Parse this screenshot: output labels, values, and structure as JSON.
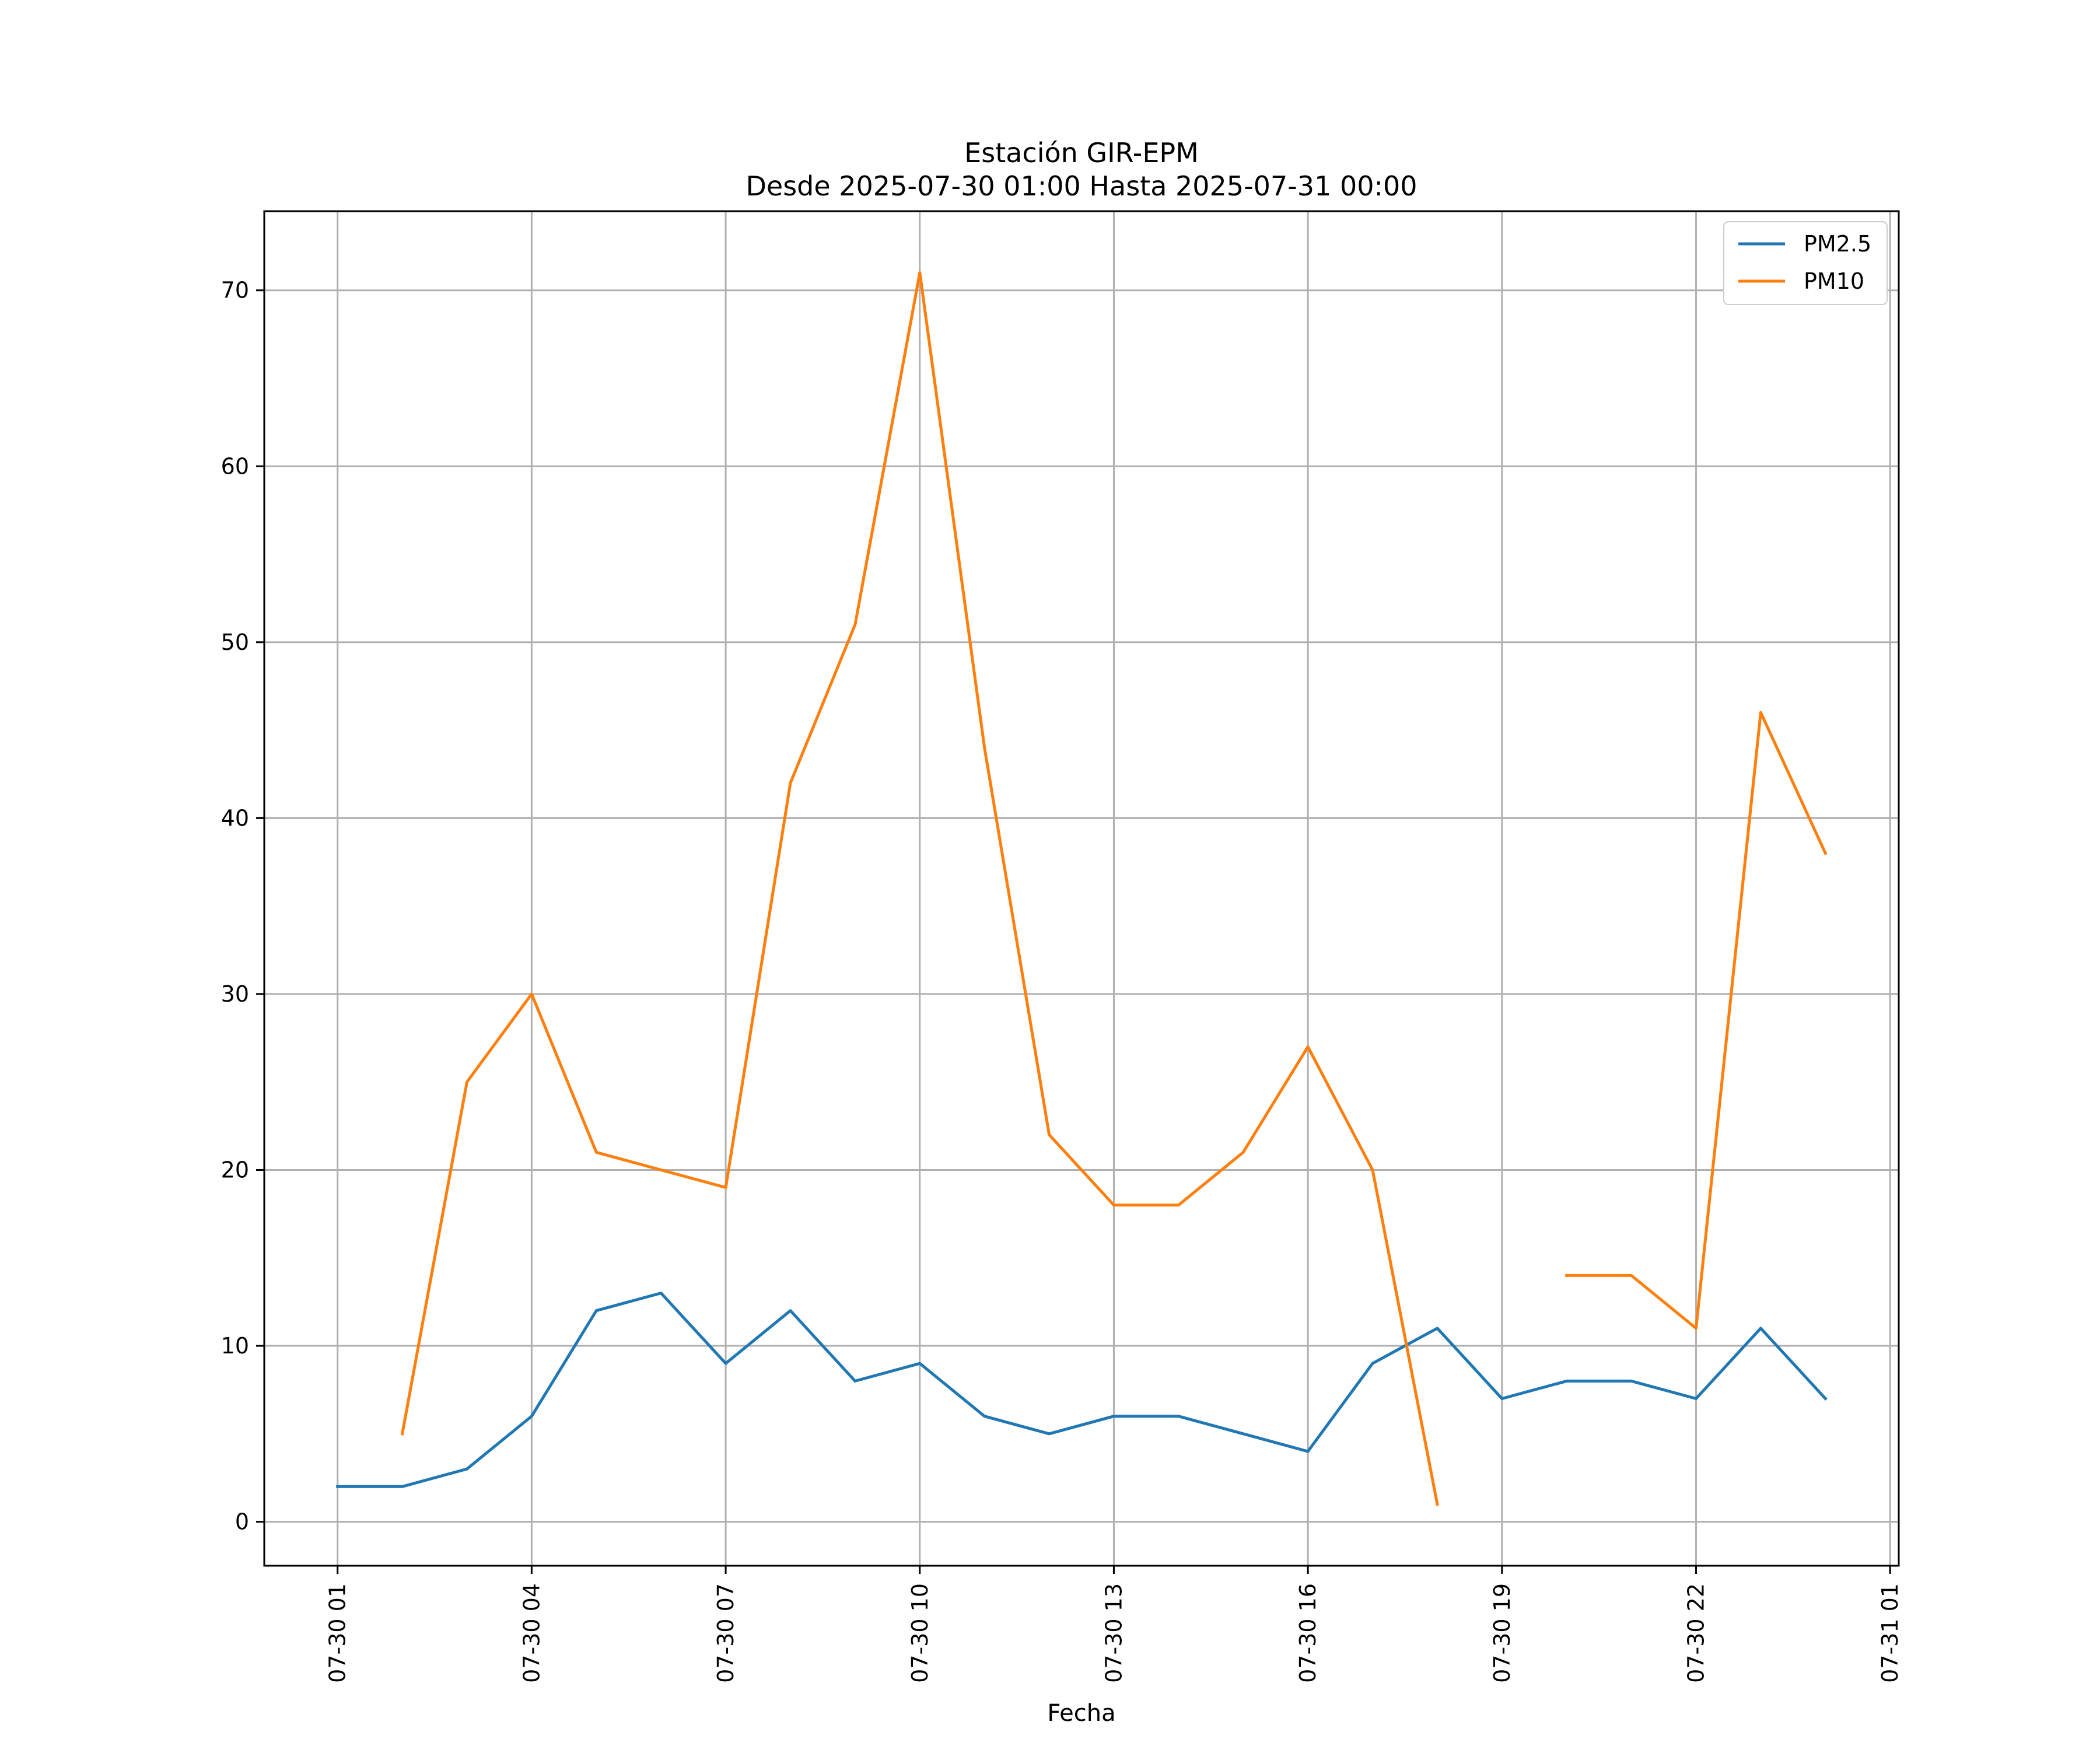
{
  "chart_data": {
    "type": "line",
    "title": "Estación GIR-EPM",
    "subtitle": "Desde 2025-07-30 01:00 Hasta 2025-07-31 00:00",
    "xlabel": "Fecha",
    "ylabel": "",
    "x": [
      "2025-07-30 01:00",
      "2025-07-30 02:00",
      "2025-07-30 03:00",
      "2025-07-30 04:00",
      "2025-07-30 05:00",
      "2025-07-30 06:00",
      "2025-07-30 07:00",
      "2025-07-30 08:00",
      "2025-07-30 09:00",
      "2025-07-30 10:00",
      "2025-07-30 11:00",
      "2025-07-30 12:00",
      "2025-07-30 13:00",
      "2025-07-30 14:00",
      "2025-07-30 15:00",
      "2025-07-30 16:00",
      "2025-07-30 17:00",
      "2025-07-30 18:00",
      "2025-07-30 19:00",
      "2025-07-30 20:00",
      "2025-07-30 21:00",
      "2025-07-30 22:00",
      "2025-07-30 23:00",
      "2025-07-31 00:00"
    ],
    "series": [
      {
        "name": "PM2.5",
        "color": "#1f77b4",
        "values": [
          2,
          2,
          3,
          6,
          12,
          13,
          9,
          12,
          8,
          9,
          6,
          5,
          6,
          6,
          5,
          4,
          9,
          11,
          7,
          8,
          8,
          7,
          11,
          7
        ]
      },
      {
        "name": "PM10",
        "color": "#ff7f0e",
        "values": [
          null,
          5,
          25,
          30,
          21,
          20,
          19,
          42,
          51,
          71,
          44,
          22,
          18,
          18,
          21,
          27,
          20,
          1,
          null,
          14,
          14,
          11,
          46,
          38
        ]
      }
    ],
    "x_ticks": [
      "07-30 01",
      "07-30 04",
      "07-30 07",
      "07-30 10",
      "07-30 13",
      "07-30 16",
      "07-30 19",
      "07-30 22",
      "07-31 01"
    ],
    "x_tick_values": [
      "2025-07-30 01:00",
      "2025-07-30 04:00",
      "2025-07-30 07:00",
      "2025-07-30 10:00",
      "2025-07-30 13:00",
      "2025-07-30 16:00",
      "2025-07-30 19:00",
      "2025-07-30 22:00",
      "2025-07-31 01:00"
    ],
    "y_ticks": [
      0,
      10,
      20,
      30,
      40,
      50,
      60,
      70
    ],
    "xlim": [
      "2025-07-29 23:52",
      "2025-07-31 01:08"
    ],
    "ylim": [
      -2.5,
      74.5
    ],
    "grid": true,
    "legend_position": "top-right"
  }
}
